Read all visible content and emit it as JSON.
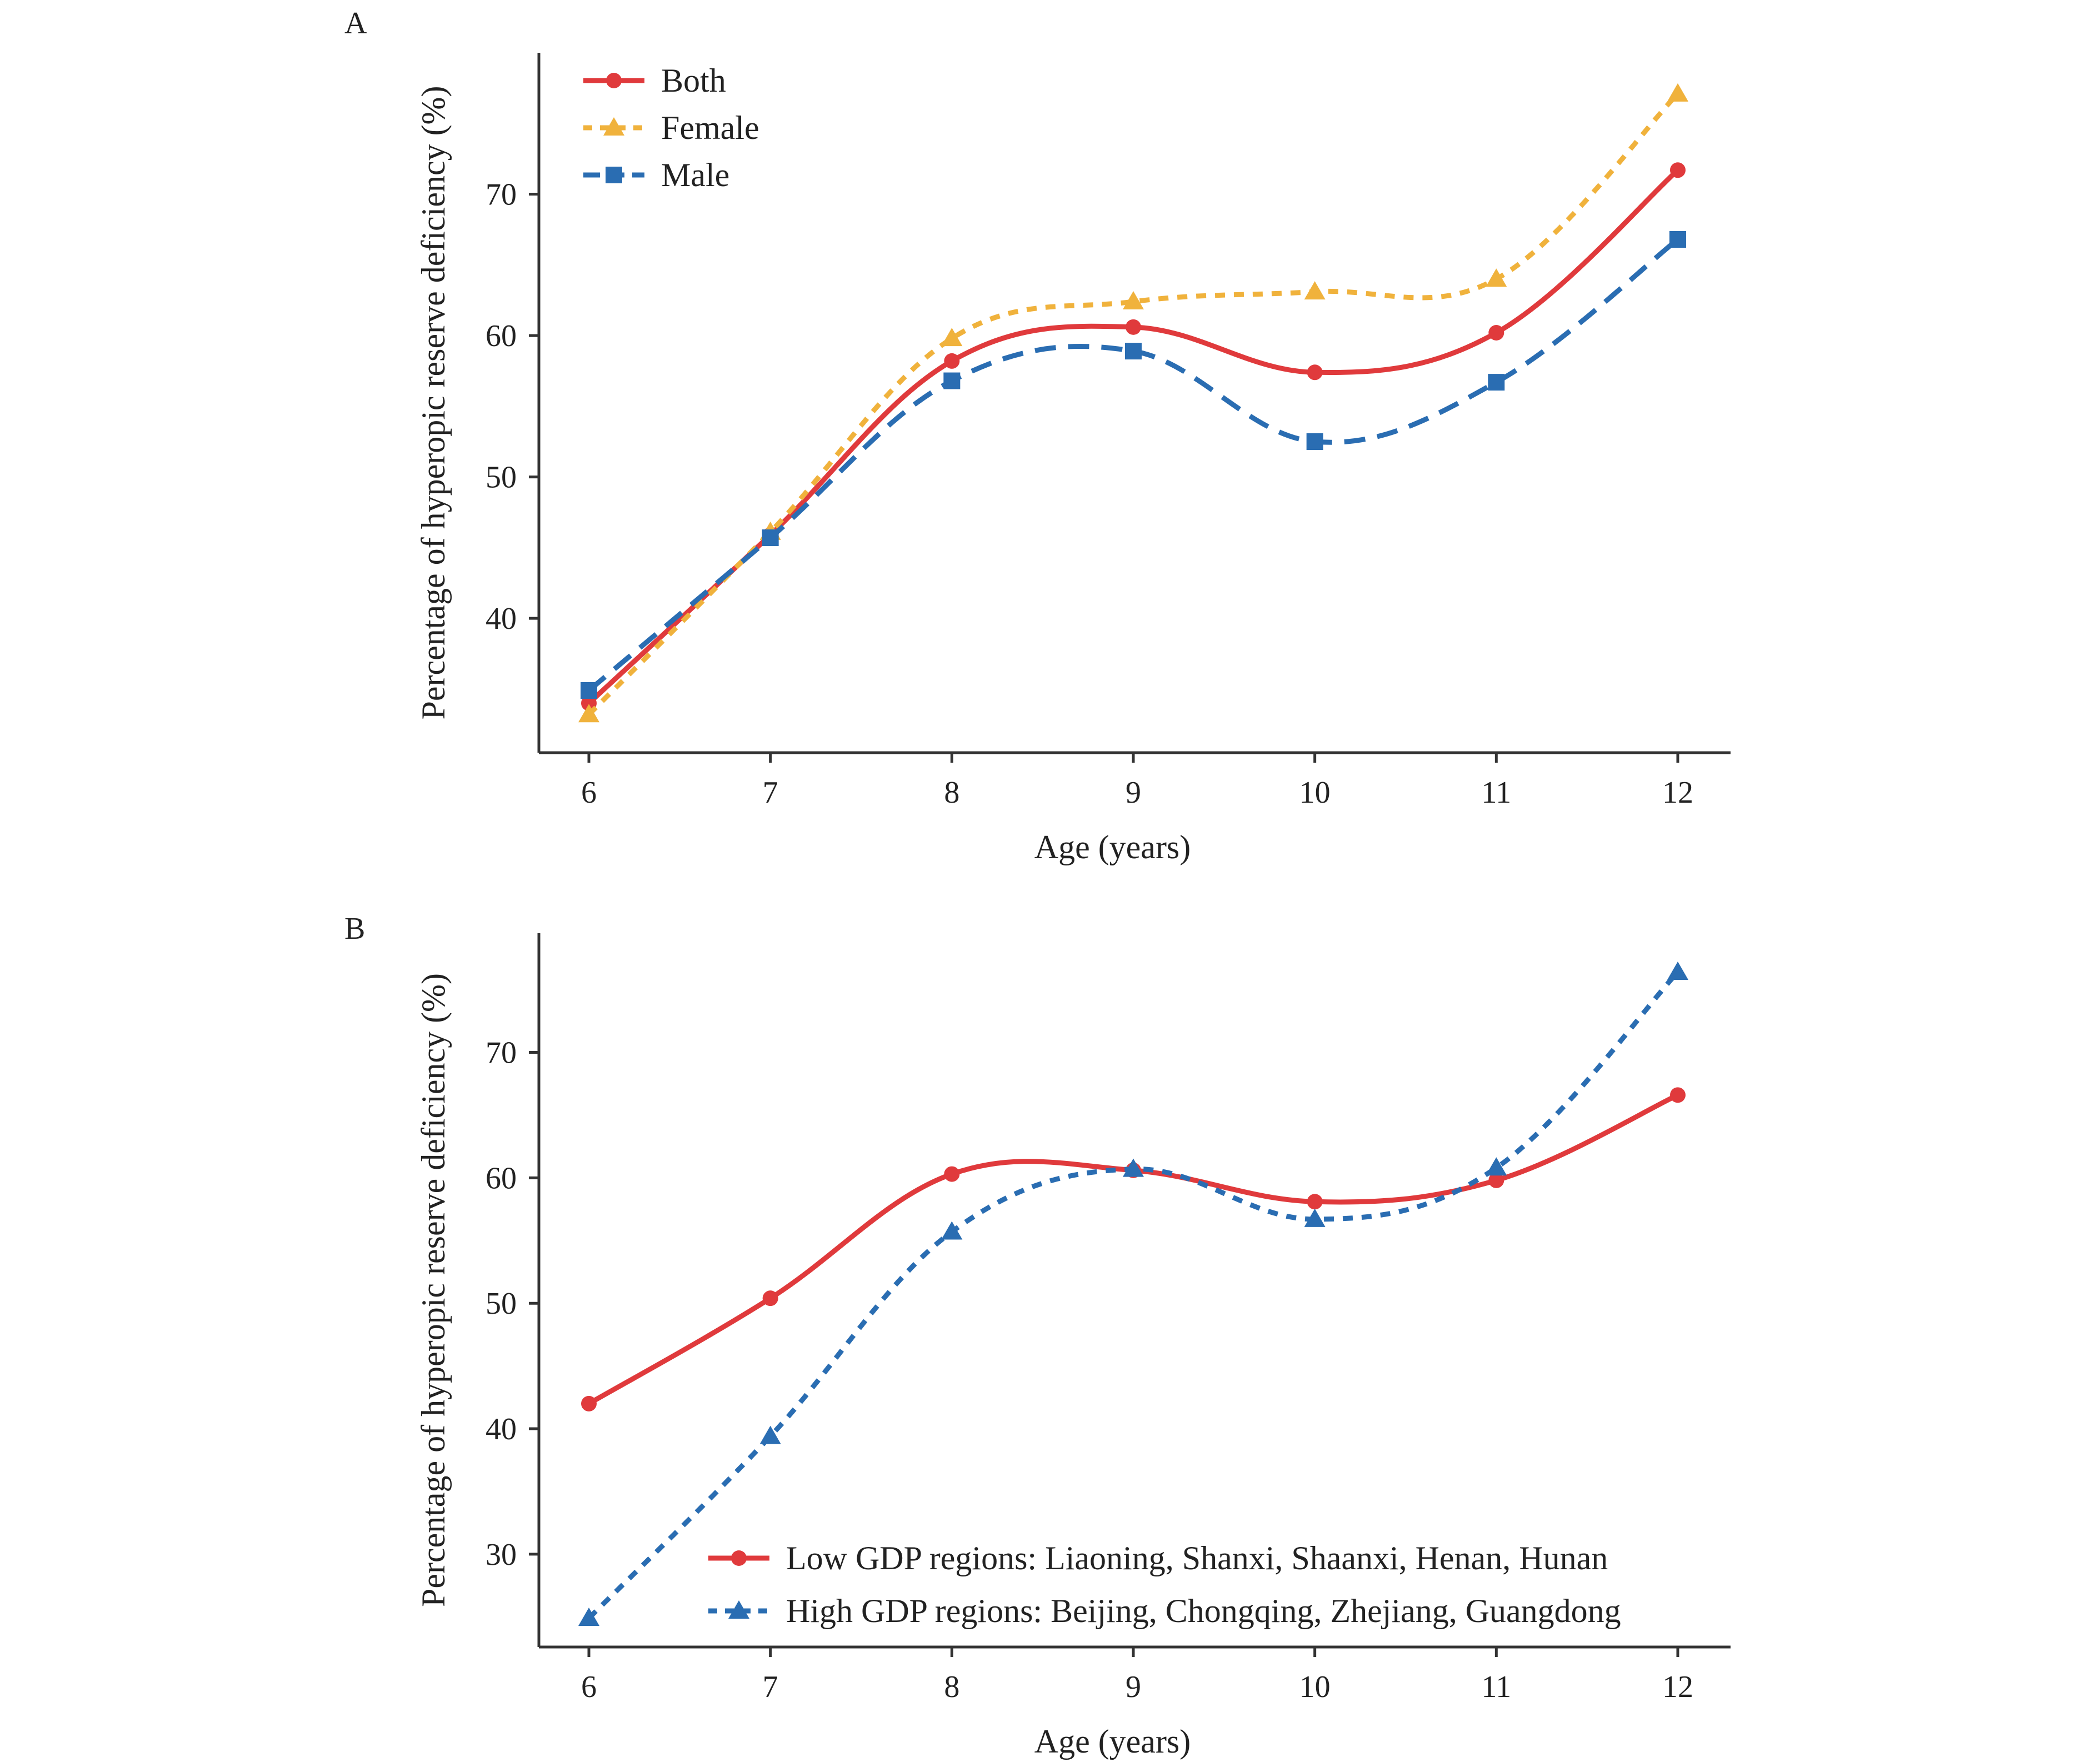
{
  "chart_data": [
    {
      "type": "line",
      "panel_label": "A",
      "title": "",
      "xlabel": "Age (years)",
      "ylabel": "Percentage of hyperopic reserve deficiency (%)",
      "x": [
        6,
        7,
        8,
        9,
        10,
        11,
        12
      ],
      "xticks": [
        "6",
        "7",
        "8",
        "9",
        "10",
        "11",
        "12"
      ],
      "yticks": [
        "40",
        "50",
        "60",
        "70"
      ],
      "ylim": [
        30.5,
        80
      ],
      "grid": false,
      "legend_position": "top-left",
      "series": [
        {
          "name": "Both",
          "color": "#e03a3c",
          "marker": "circle",
          "dash": "solid",
          "values": [
            34.0,
            45.9,
            58.2,
            60.6,
            57.4,
            60.2,
            71.7
          ]
        },
        {
          "name": "Female",
          "color": "#f0b23c",
          "marker": "triangle",
          "dash": "dotted",
          "values": [
            33.2,
            46.1,
            59.8,
            62.4,
            63.1,
            64.0,
            77.1
          ]
        },
        {
          "name": "Male",
          "color": "#2a6db2",
          "marker": "square",
          "dash": "dashed",
          "values": [
            34.9,
            45.7,
            56.8,
            58.9,
            52.5,
            56.7,
            66.8
          ]
        }
      ]
    },
    {
      "type": "line",
      "panel_label": "B",
      "title": "",
      "xlabel": "Age (years)",
      "ylabel": "Percentage of hyperopic reserve deficiency (%)",
      "x": [
        6,
        7,
        8,
        9,
        10,
        11,
        12
      ],
      "xticks": [
        "6",
        "7",
        "8",
        "9",
        "10",
        "11",
        "12"
      ],
      "yticks": [
        "30",
        "40",
        "50",
        "60",
        "70"
      ],
      "ylim": [
        22.6,
        79.5
      ],
      "grid": false,
      "legend_position": "bottom-right",
      "series": [
        {
          "name": "Low GDP regions: Liaoning, Shanxi, Shaanxi, Henan, Hunan",
          "color": "#e03a3c",
          "marker": "circle",
          "dash": "solid",
          "values": [
            42.0,
            50.4,
            60.3,
            60.6,
            58.1,
            59.8,
            66.6
          ]
        },
        {
          "name": "High GDP regions: Beijing, Chongqing, Zhejiang, Guangdong",
          "color": "#2a6db2",
          "marker": "triangle",
          "dash": "dotted",
          "values": [
            24.9,
            39.4,
            55.7,
            60.7,
            56.7,
            60.8,
            76.4
          ]
        }
      ]
    }
  ]
}
